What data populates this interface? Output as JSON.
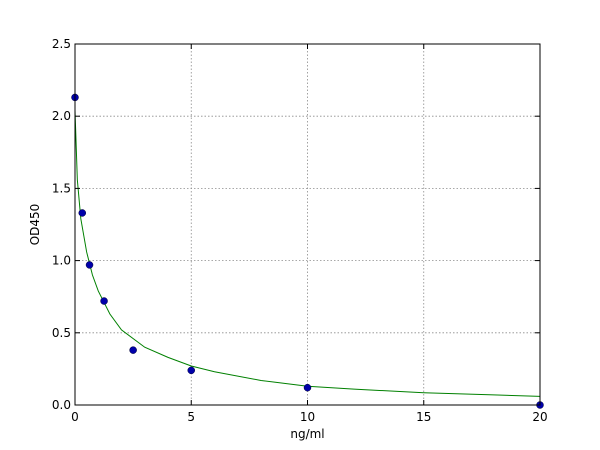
{
  "chart_data": {
    "type": "scatter",
    "xlabel": "ng/ml",
    "ylabel": "OD450",
    "xlim": [
      0,
      20
    ],
    "ylim": [
      0,
      2.5
    ],
    "x_ticks": [
      0,
      5,
      10,
      15,
      20
    ],
    "y_ticks": [
      0.0,
      0.5,
      1.0,
      1.5,
      2.0,
      2.5
    ],
    "x_tick_labels": [
      "0",
      "5",
      "10",
      "15",
      "20"
    ],
    "y_tick_labels": [
      "0.0",
      "0.5",
      "1.0",
      "1.5",
      "2.0",
      "2.5"
    ],
    "grid": true,
    "series": [
      {
        "kind": "points",
        "color": "#0000aa",
        "x": [
          0,
          0.3125,
          0.625,
          1.25,
          2.5,
          5,
          10,
          20
        ],
        "y": [
          2.13,
          1.33,
          0.97,
          0.72,
          0.38,
          0.24,
          0.12,
          0.0
        ]
      },
      {
        "kind": "fit-curve",
        "color": "#008000",
        "x": [
          0,
          0.1,
          0.25,
          0.5,
          0.75,
          1,
          1.5,
          2,
          3,
          4,
          5,
          6,
          8,
          10,
          12,
          15,
          18,
          20
        ],
        "y": [
          2.04,
          1.56,
          1.29,
          1.06,
          0.9,
          0.79,
          0.63,
          0.52,
          0.4,
          0.33,
          0.27,
          0.23,
          0.17,
          0.13,
          0.11,
          0.085,
          0.07,
          0.06
        ]
      }
    ]
  }
}
